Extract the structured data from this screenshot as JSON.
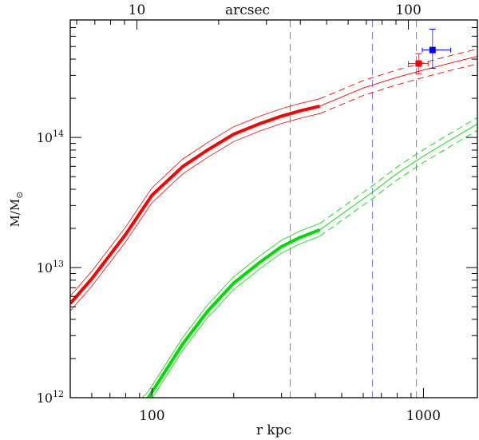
{
  "chart_data": {
    "type": "line",
    "xlabel": "r  kpc",
    "ylabel": "M/M",
    "ylabel_sub": "⊙",
    "top_axis_label": "arcsec",
    "x_scale": "log",
    "y_scale": "log",
    "xlim": [
      50,
      1580
    ],
    "ylim": [
      1000000000000.0,
      800000000000000.0
    ],
    "x_ticks": [
      {
        "v": 100,
        "label": "100"
      },
      {
        "v": 1000,
        "label": "1000"
      }
    ],
    "y_ticks": [
      {
        "v": 1000000000000.0,
        "base": "10",
        "exp": "12"
      },
      {
        "v": 10000000000000.0,
        "base": "10",
        "exp": "13"
      },
      {
        "v": 100000000000000.0,
        "base": "10",
        "exp": "14"
      }
    ],
    "top_ticks": [
      {
        "v": 10,
        "label": "10"
      },
      {
        "v": 100,
        "label": "100"
      }
    ],
    "kpc_per_arcsec": 8.8,
    "vlines": [
      323,
      649,
      942
    ],
    "series": [
      {
        "name": "red-model",
        "color": "#ff0000",
        "solid_r": [
          50,
          60,
          70,
          80,
          100,
          130,
          160,
          200,
          250,
          300,
          350,
          415
        ],
        "solid_m": [
          5300000000000.0,
          8200000000000.0,
          12500000000000.0,
          18000000000000.0,
          36000000000000.0,
          60000000000000.0,
          80000000000000.0,
          106000000000000.0,
          128000000000000.0,
          146000000000000.0,
          160000000000000.0,
          174000000000000.0
        ],
        "dashed_r": [
          415,
          600,
          800,
          1000,
          1300,
          1580
        ],
        "dashed_m": [
          174000000000000.0,
          240000000000000.0,
          290000000000000.0,
          330000000000000.0,
          380000000000000.0,
          420000000000000.0
        ],
        "band": 0.14
      },
      {
        "name": "green-model",
        "color": "#00dd00",
        "solid_r": [
          90,
          97,
          130,
          160,
          200,
          250,
          300,
          350,
          415
        ],
        "solid_m": [
          850000000000.0,
          1000000000000.0,
          2600000000000.0,
          4600000000000.0,
          7600000000000.0,
          11000000000000.0,
          14500000000000.0,
          17000000000000.0,
          19500000000000.0
        ],
        "dashed_r": [
          415,
          649,
          800,
          1000,
          1300,
          1580
        ],
        "dashed_m": [
          19500000000000.0,
          38000000000000.0,
          53000000000000.0,
          72000000000000.0,
          100000000000000.0,
          127000000000000.0
        ],
        "band": 0.12
      }
    ],
    "points": [
      {
        "name": "red-point",
        "color": "#ff0000",
        "r": 960,
        "m": 370000000000000.0,
        "r_err": [
          880,
          1040
        ],
        "m_err": [
          310000000000000.0,
          440000000000000.0
        ]
      },
      {
        "name": "blue-point",
        "color": "#0000ff",
        "r": 1080,
        "m": 470000000000000.0,
        "r_err": [
          990,
          1260
        ],
        "m_err": [
          340000000000000.0,
          680000000000000.0
        ]
      }
    ]
  }
}
